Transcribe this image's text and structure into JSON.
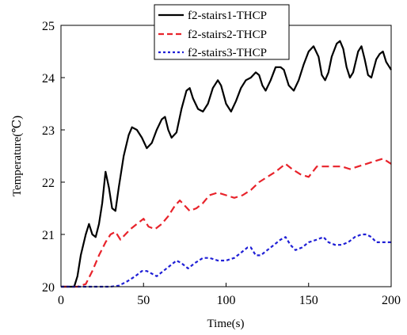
{
  "chart_data": {
    "type": "line",
    "xlabel": "Time(s)",
    "ylabel": "Temperature(℃)",
    "xlim": [
      0,
      200
    ],
    "ylim": [
      20,
      25
    ],
    "xticks": [
      "0",
      "50",
      "100",
      "150",
      "200"
    ],
    "yticks": [
      "20",
      "21",
      "22",
      "23",
      "24",
      "25"
    ],
    "grid": false,
    "legend_position": "top-right",
    "series": [
      {
        "name": "f2-stairs1-THCP",
        "color": "#000000",
        "dash": "solid",
        "points": [
          [
            0,
            20.0
          ],
          [
            8,
            20.0
          ],
          [
            10,
            20.2
          ],
          [
            12,
            20.6
          ],
          [
            15,
            21.0
          ],
          [
            17,
            21.2
          ],
          [
            19,
            21.0
          ],
          [
            21,
            20.95
          ],
          [
            23,
            21.2
          ],
          [
            25,
            21.6
          ],
          [
            27,
            22.2
          ],
          [
            29,
            21.9
          ],
          [
            31,
            21.5
          ],
          [
            33,
            21.45
          ],
          [
            35,
            21.9
          ],
          [
            38,
            22.5
          ],
          [
            41,
            22.9
          ],
          [
            43,
            23.05
          ],
          [
            46,
            23.0
          ],
          [
            49,
            22.85
          ],
          [
            52,
            22.65
          ],
          [
            55,
            22.75
          ],
          [
            58,
            23.0
          ],
          [
            61,
            23.2
          ],
          [
            63,
            23.25
          ],
          [
            65,
            23.0
          ],
          [
            67,
            22.85
          ],
          [
            70,
            22.95
          ],
          [
            73,
            23.4
          ],
          [
            76,
            23.75
          ],
          [
            78,
            23.8
          ],
          [
            80,
            23.6
          ],
          [
            83,
            23.4
          ],
          [
            86,
            23.35
          ],
          [
            89,
            23.5
          ],
          [
            92,
            23.8
          ],
          [
            95,
            23.95
          ],
          [
            97,
            23.85
          ],
          [
            100,
            23.5
          ],
          [
            103,
            23.35
          ],
          [
            106,
            23.55
          ],
          [
            109,
            23.8
          ],
          [
            112,
            23.95
          ],
          [
            115,
            24.0
          ],
          [
            118,
            24.1
          ],
          [
            120,
            24.05
          ],
          [
            122,
            23.85
          ],
          [
            124,
            23.75
          ],
          [
            127,
            23.95
          ],
          [
            130,
            24.2
          ],
          [
            133,
            24.2
          ],
          [
            135,
            24.15
          ],
          [
            138,
            23.85
          ],
          [
            141,
            23.75
          ],
          [
            144,
            23.95
          ],
          [
            147,
            24.25
          ],
          [
            150,
            24.5
          ],
          [
            153,
            24.6
          ],
          [
            156,
            24.4
          ],
          [
            158,
            24.05
          ],
          [
            160,
            23.95
          ],
          [
            162,
            24.1
          ],
          [
            164,
            24.4
          ],
          [
            167,
            24.65
          ],
          [
            169,
            24.7
          ],
          [
            171,
            24.55
          ],
          [
            173,
            24.2
          ],
          [
            175,
            24.0
          ],
          [
            177,
            24.1
          ],
          [
            180,
            24.5
          ],
          [
            182,
            24.6
          ],
          [
            184,
            24.35
          ],
          [
            186,
            24.05
          ],
          [
            188,
            24.0
          ],
          [
            191,
            24.35
          ],
          [
            193,
            24.45
          ],
          [
            195,
            24.5
          ],
          [
            197,
            24.3
          ],
          [
            199,
            24.2
          ],
          [
            200,
            24.15
          ]
        ]
      },
      {
        "name": "f2-stairs2-THCP",
        "color": "#e8232b",
        "dash": "dashed",
        "points": [
          [
            0,
            20.0
          ],
          [
            10,
            20.0
          ],
          [
            15,
            20.05
          ],
          [
            19,
            20.3
          ],
          [
            23,
            20.6
          ],
          [
            27,
            20.85
          ],
          [
            30,
            21.0
          ],
          [
            33,
            21.05
          ],
          [
            36,
            20.9
          ],
          [
            39,
            21.0
          ],
          [
            42,
            21.1
          ],
          [
            46,
            21.2
          ],
          [
            50,
            21.3
          ],
          [
            53,
            21.15
          ],
          [
            57,
            21.1
          ],
          [
            61,
            21.2
          ],
          [
            65,
            21.35
          ],
          [
            69,
            21.55
          ],
          [
            72,
            21.65
          ],
          [
            75,
            21.55
          ],
          [
            78,
            21.45
          ],
          [
            82,
            21.5
          ],
          [
            86,
            21.6
          ],
          [
            90,
            21.75
          ],
          [
            95,
            21.8
          ],
          [
            100,
            21.75
          ],
          [
            105,
            21.7
          ],
          [
            110,
            21.75
          ],
          [
            115,
            21.85
          ],
          [
            120,
            22.0
          ],
          [
            125,
            22.1
          ],
          [
            130,
            22.2
          ],
          [
            134,
            22.3
          ],
          [
            136,
            22.35
          ],
          [
            140,
            22.25
          ],
          [
            145,
            22.15
          ],
          [
            150,
            22.1
          ],
          [
            155,
            22.3
          ],
          [
            160,
            22.3
          ],
          [
            165,
            22.3
          ],
          [
            170,
            22.3
          ],
          [
            175,
            22.25
          ],
          [
            180,
            22.3
          ],
          [
            185,
            22.35
          ],
          [
            190,
            22.4
          ],
          [
            195,
            22.45
          ],
          [
            200,
            22.35
          ]
        ]
      },
      {
        "name": "f2-stairs3-THCP",
        "color": "#1f1fd6",
        "dash": "dotted",
        "points": [
          [
            0,
            20.0
          ],
          [
            30,
            20.0
          ],
          [
            35,
            20.02
          ],
          [
            40,
            20.1
          ],
          [
            45,
            20.2
          ],
          [
            49,
            20.3
          ],
          [
            52,
            20.3
          ],
          [
            55,
            20.25
          ],
          [
            58,
            20.2
          ],
          [
            62,
            20.3
          ],
          [
            66,
            20.4
          ],
          [
            70,
            20.5
          ],
          [
            73,
            20.45
          ],
          [
            77,
            20.35
          ],
          [
            81,
            20.45
          ],
          [
            86,
            20.55
          ],
          [
            90,
            20.55
          ],
          [
            95,
            20.5
          ],
          [
            100,
            20.5
          ],
          [
            105,
            20.55
          ],
          [
            109,
            20.65
          ],
          [
            113,
            20.75
          ],
          [
            115,
            20.75
          ],
          [
            118,
            20.6
          ],
          [
            121,
            20.6
          ],
          [
            125,
            20.7
          ],
          [
            129,
            20.8
          ],
          [
            133,
            20.9
          ],
          [
            136,
            20.95
          ],
          [
            139,
            20.8
          ],
          [
            142,
            20.7
          ],
          [
            146,
            20.75
          ],
          [
            150,
            20.85
          ],
          [
            155,
            20.9
          ],
          [
            159,
            20.95
          ],
          [
            162,
            20.85
          ],
          [
            166,
            20.8
          ],
          [
            170,
            20.8
          ],
          [
            174,
            20.85
          ],
          [
            178,
            20.95
          ],
          [
            182,
            21.0
          ],
          [
            185,
            21.0
          ],
          [
            188,
            20.95
          ],
          [
            191,
            20.85
          ],
          [
            195,
            20.85
          ],
          [
            200,
            20.85
          ]
        ]
      }
    ]
  }
}
